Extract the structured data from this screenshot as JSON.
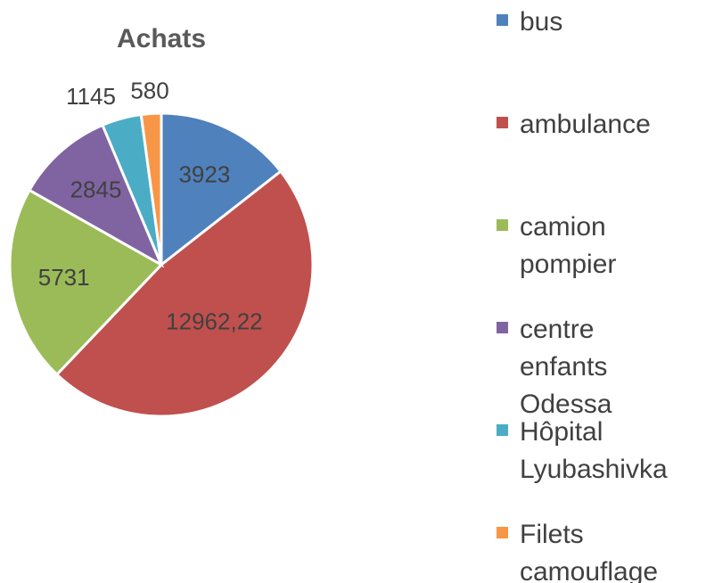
{
  "chart_data": {
    "type": "pie",
    "title": "Achats",
    "categories": [
      "bus",
      "ambulance",
      "camion pompier",
      "centre enfants Odessa",
      "Hôpital Lyubashivka",
      "Filets camouflage"
    ],
    "values": [
      3923,
      12962.22,
      5731,
      2845,
      1145,
      580
    ],
    "value_labels": [
      "3923",
      "12962,22",
      "5731",
      "2845",
      "1145",
      "580"
    ],
    "colors": [
      "#4f81bd",
      "#c0504d",
      "#9bbb59",
      "#8064a2",
      "#4bacc6",
      "#f79646"
    ],
    "legend": "right"
  }
}
